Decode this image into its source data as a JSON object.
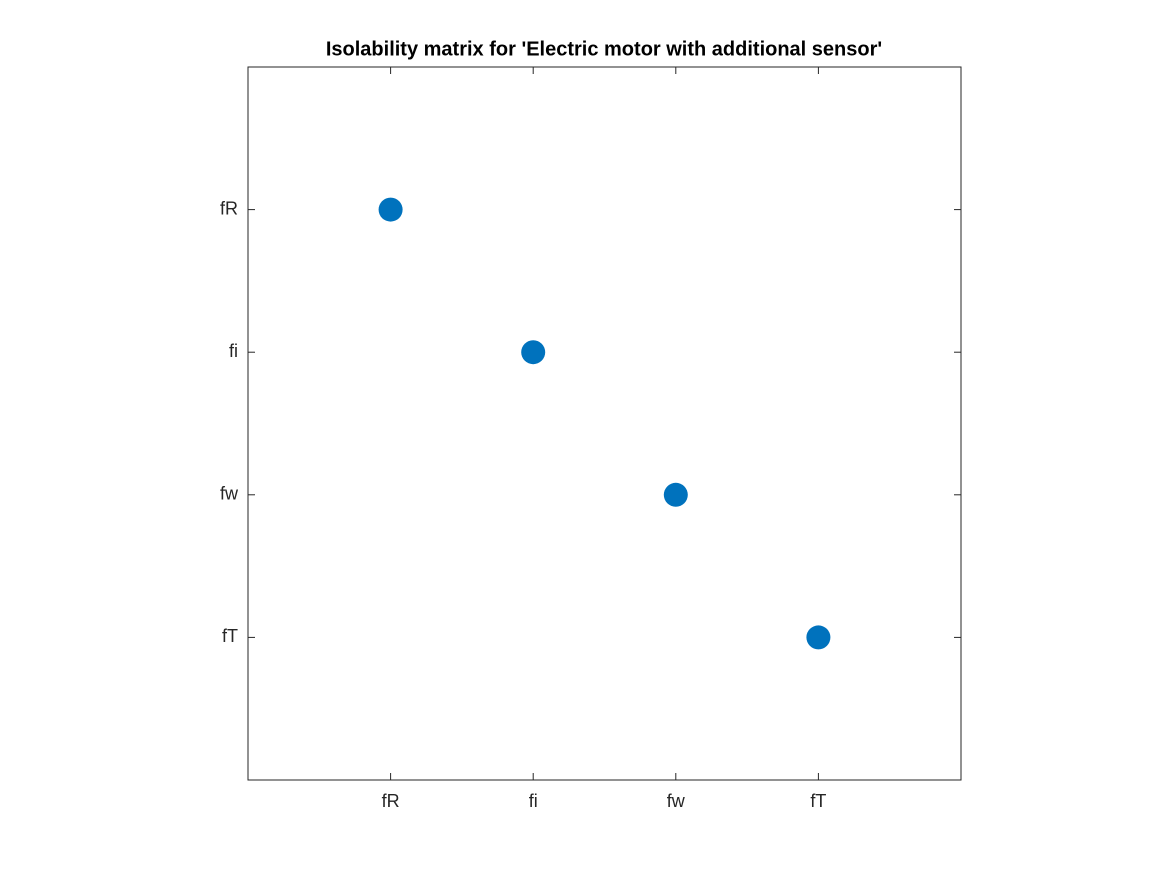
{
  "chart_data": {
    "type": "scatter",
    "title": "Isolability matrix for 'Electric motor with additional sensor'",
    "x": [
      1,
      2,
      3,
      4
    ],
    "values": [
      1,
      2,
      3,
      4
    ],
    "color": "#0072bd",
    "xlim": [
      0,
      5
    ],
    "ylim": [
      0,
      5
    ],
    "y_reversed": true,
    "xticks": [
      {
        "value": 1,
        "label": "fR"
      },
      {
        "value": 2,
        "label": "fi"
      },
      {
        "value": 3,
        "label": "fw"
      },
      {
        "value": 4,
        "label": "fT"
      }
    ],
    "yticks": [
      {
        "value": 1,
        "label": "fR"
      },
      {
        "value": 2,
        "label": "fi"
      },
      {
        "value": 3,
        "label": "fw"
      },
      {
        "value": 4,
        "label": "fT"
      }
    ],
    "grid": false
  }
}
